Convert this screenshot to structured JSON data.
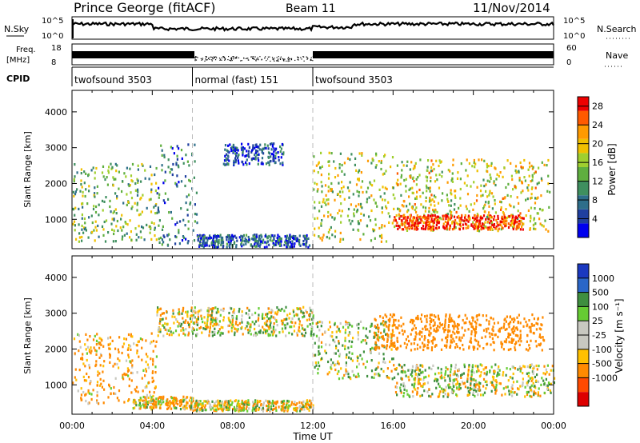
{
  "header": {
    "title": "Prince George (fitACF)",
    "beam": "Beam 11",
    "date": "11/Nov/2014"
  },
  "top_panels": {
    "nsky_label": "N.Sky",
    "nsky_ticks": [
      "10^5",
      "10^0"
    ],
    "nsearch_label": "N.Search",
    "nsearch_ticks": [
      "10^5",
      "10^0"
    ],
    "freq_label_1": "Freq.",
    "freq_label_2": "[MHz]",
    "freq_ticks": [
      "18",
      "8"
    ],
    "nave_label": "Nave",
    "nave_ticks": [
      "60",
      "0"
    ],
    "cpid_label": "CPID",
    "cpid_segments": [
      {
        "label": "twofsound 3503",
        "start_hour": 0,
        "end_hour": 6
      },
      {
        "label": "normal (fast) 151",
        "start_hour": 6,
        "end_hour": 12
      },
      {
        "label": "twofsound 3503",
        "start_hour": 12,
        "end_hour": 24
      }
    ]
  },
  "colors": {
    "power_scale": [
      "#0000ee",
      "#1f3f9f",
      "#2e6e8a",
      "#3f8f5f",
      "#5faf3f",
      "#9fcf2f",
      "#f0c000",
      "#ff9a00",
      "#ff5a00",
      "#ee0000"
    ],
    "velocity_scale": [
      "#1a38c0",
      "#2a66c8",
      "#3f8f3f",
      "#66cc33",
      "#c8c8c0",
      "#c8c8c0",
      "#ffc000",
      "#ff8a00",
      "#ff4a00",
      "#dd0000"
    ]
  },
  "chart_data": [
    {
      "type": "heatmap",
      "panel": "power",
      "ylabel": "Slant Range [km]",
      "yticks": [
        1000,
        2000,
        3000,
        4000
      ],
      "ylim": [
        180,
        4600
      ],
      "xlim": [
        0,
        24
      ],
      "colorbar_label": "Power [dB]",
      "colorbar_ticks": [
        4,
        8,
        12,
        16,
        20,
        24,
        28
      ],
      "colorbar_range": [
        0,
        30
      ],
      "bands": [
        {
          "start": 0,
          "end": 4.2,
          "range_min": 400,
          "range_max": 2600,
          "level": 14
        },
        {
          "start": 4.2,
          "end": 6.2,
          "range_min": 300,
          "range_max": 3200,
          "level": 8
        },
        {
          "start": 6.2,
          "end": 11.8,
          "range_min": 250,
          "range_max": 600,
          "level": 6
        },
        {
          "start": 7.5,
          "end": 10.5,
          "range_min": 2550,
          "range_max": 3150,
          "level": 5
        },
        {
          "start": 12,
          "end": 16,
          "range_min": 400,
          "range_max": 2900,
          "level": 16
        },
        {
          "start": 16,
          "end": 23.8,
          "range_min": 700,
          "range_max": 2700,
          "level": 18
        },
        {
          "start": 16,
          "end": 22.5,
          "range_min": 750,
          "range_max": 1150,
          "level": 27
        }
      ]
    },
    {
      "type": "heatmap",
      "panel": "velocity",
      "ylabel": "Slant Range [km]",
      "yticks": [
        1000,
        2000,
        3000,
        4000
      ],
      "ylim": [
        180,
        4600
      ],
      "xlim": [
        0,
        24
      ],
      "colorbar_label": "Velocity [m s⁻¹]",
      "colorbar_ticks": [
        "1000",
        "500",
        "100",
        "25",
        "-25",
        "-100",
        "-500",
        "-1000"
      ],
      "xticks": [
        "00:00",
        "04:00",
        "08:00",
        "12:00",
        "16:00",
        "20:00",
        "00:00"
      ],
      "xlabel": "Time UT",
      "bands": [
        {
          "start": 0,
          "end": 4.2,
          "range_min": 500,
          "range_max": 2500,
          "level": -150
        },
        {
          "start": 3,
          "end": 6,
          "range_min": 350,
          "range_max": 700,
          "level": -80
        },
        {
          "start": 4.2,
          "end": 12,
          "range_min": 2400,
          "range_max": 3200,
          "level": 0
        },
        {
          "start": 6,
          "end": 12,
          "range_min": 300,
          "range_max": 600,
          "level": -60
        },
        {
          "start": 12,
          "end": 16,
          "range_min": 1200,
          "range_max": 2800,
          "level": 60
        },
        {
          "start": 15,
          "end": 23.5,
          "range_min": 2000,
          "range_max": 3000,
          "level": -300
        },
        {
          "start": 16,
          "end": 24,
          "range_min": 700,
          "range_max": 1600,
          "level": 0
        }
      ]
    }
  ]
}
